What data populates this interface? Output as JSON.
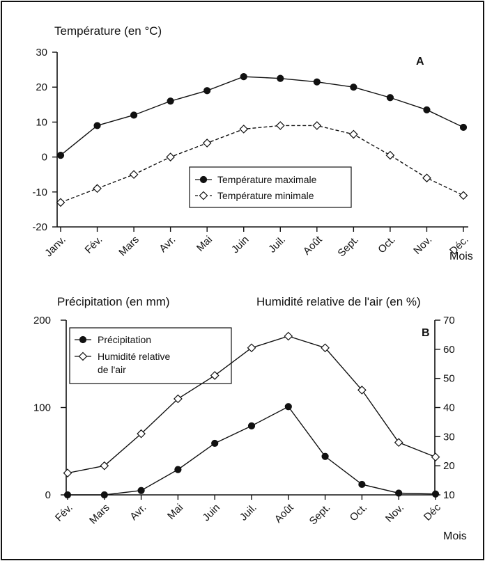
{
  "chart_data": [
    {
      "type": "line",
      "panel_letter": "A",
      "ylabel": "Température (en °C)",
      "xlabel": "Mois",
      "ylim": [
        -20,
        30
      ],
      "yticks": [
        "-20",
        "-10",
        "0",
        "10",
        "20",
        "30"
      ],
      "categories": [
        "Janv.",
        "Fév.",
        "Mars",
        "Avr.",
        "Mai",
        "Juin",
        "Juil.",
        "Août",
        "Sept.",
        "Oct.",
        "Nov.",
        "Déc."
      ],
      "legend_position": "center",
      "series": [
        {
          "name": "Température maximale",
          "marker": "filled-circle",
          "line_style": "solid",
          "color": "#111111",
          "values": [
            0.5,
            9,
            12,
            16,
            19,
            23,
            22.5,
            21.5,
            20,
            17,
            13.5,
            8.5
          ]
        },
        {
          "name": "Température minimale",
          "marker": "open-diamond",
          "line_style": "dashed",
          "color": "#111111",
          "values": [
            -13,
            -9,
            -5,
            0,
            4,
            8,
            9,
            9,
            6.5,
            0.5,
            -6,
            -11
          ]
        }
      ]
    },
    {
      "type": "line",
      "panel_letter": "B",
      "ylabel": "Précipitation (en mm)",
      "y2label": "Humidité relative de l'air (en %)",
      "xlabel": "Mois",
      "ylim": [
        0,
        200
      ],
      "y2lim": [
        10,
        70
      ],
      "yticks": [
        "0",
        "100",
        "200"
      ],
      "y2ticks": [
        "10",
        "20",
        "30",
        "40",
        "50",
        "60",
        "70"
      ],
      "categories": [
        "Fév.",
        "Mars",
        "Avr.",
        "Mai",
        "Juin",
        "Juil.",
        "Août",
        "Sept.",
        "Oct.",
        "Nov.",
        "Déc"
      ],
      "legend_position": "top-left",
      "series": [
        {
          "name": "Précipitation",
          "marker": "filled-circle",
          "axis": "left",
          "color": "#111111",
          "values": [
            0,
            0,
            5,
            29,
            59,
            79,
            101,
            44,
            12,
            2,
            1
          ]
        },
        {
          "name": "Humidité relative de l'air",
          "legend_lines": [
            "Humidité relative",
            "de l'air"
          ],
          "marker": "open-diamond",
          "axis": "right",
          "color": "#111111",
          "values": [
            17.5,
            20,
            31,
            43,
            51,
            60.5,
            64.5,
            60.5,
            46,
            28,
            23
          ]
        }
      ]
    }
  ]
}
